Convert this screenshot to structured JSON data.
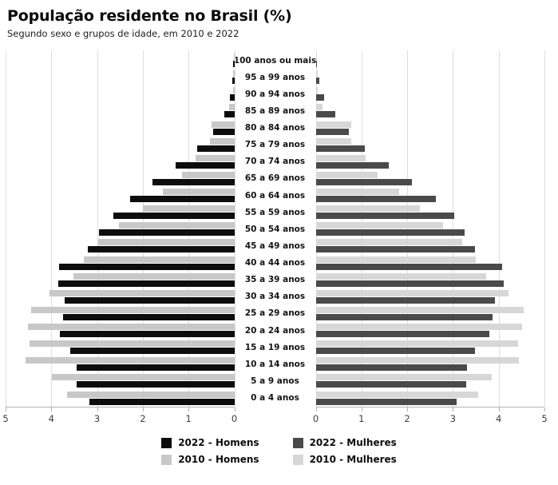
{
  "header": {
    "title": "População residente no Brasil (%)",
    "subtitle": "Segundo sexo e grupos de idade, em 2010 e 2022"
  },
  "colors": {
    "men_2022": "#0d0d0d",
    "men_2010": "#c8c8c8",
    "women_2022": "#4a4a4a",
    "women_2010": "#d7d7d7",
    "gridline": "#dedede",
    "axis": "#b3b3b3"
  },
  "chart_data": {
    "type": "bar",
    "variant": "population-pyramid",
    "title": "População residente no Brasil (%)",
    "subtitle": "Segundo sexo e grupos de idade, em 2010 e 2022",
    "xlim": [
      0,
      5
    ],
    "grid": true,
    "age_groups": [
      "100 anos ou mais",
      "95 a 99 anos",
      "90 a 94 anos",
      "85 a 89 anos",
      "80 a 84 anos",
      "75 a 79 anos",
      "70 a 74 anos",
      "65 a 69 anos",
      "60 a 64 anos",
      "55 a 59 anos",
      "50 a 54 anos",
      "45 a 49 anos",
      "40 a 44 anos",
      "35 a 39 anos",
      "30 a 34 anos",
      "25 a 29 anos",
      "20 a 24 anos",
      "15 a 19 anos",
      "10 a 14 anos",
      "5 a 9 anos",
      "0 a 4 anos"
    ],
    "series": [
      {
        "name": "2022 - Homens",
        "side": "left",
        "color_key": "men_2022",
        "values": [
          0.02,
          0.05,
          0.1,
          0.21,
          0.47,
          0.81,
          1.29,
          1.79,
          2.27,
          2.65,
          2.95,
          3.2,
          3.83,
          3.85,
          3.71,
          3.75,
          3.81,
          3.58,
          3.44,
          3.44,
          3.17
        ]
      },
      {
        "name": "2010 - Homens",
        "side": "left",
        "color_key": "men_2010",
        "values": [
          0.01,
          0.02,
          0.03,
          0.11,
          0.49,
          0.53,
          0.85,
          1.15,
          1.57,
          1.99,
          2.52,
          2.97,
          3.29,
          3.52,
          4.04,
          4.44,
          4.52,
          4.48,
          4.56,
          3.99,
          3.65
        ]
      },
      {
        "name": "2022 - Mulheres",
        "side": "right",
        "color_key": "women_2022",
        "values": [
          0.02,
          0.07,
          0.19,
          0.42,
          0.73,
          1.07,
          1.6,
          2.11,
          2.63,
          3.03,
          3.25,
          3.49,
          4.08,
          4.11,
          3.91,
          3.87,
          3.79,
          3.48,
          3.31,
          3.29,
          3.08
        ]
      },
      {
        "name": "2010 - Mulheres",
        "side": "right",
        "color_key": "women_2010",
        "values": [
          0.01,
          0.04,
          0.05,
          0.14,
          0.78,
          0.77,
          1.09,
          1.36,
          1.83,
          2.28,
          2.78,
          3.21,
          3.5,
          3.73,
          4.21,
          4.54,
          4.52,
          4.43,
          4.44,
          3.84,
          3.56
        ]
      }
    ],
    "x_ticks_left": [
      "5",
      "4",
      "3",
      "2",
      "1",
      "0"
    ],
    "x_ticks_right": [
      "0",
      "1",
      "2",
      "3",
      "4",
      "5"
    ],
    "legend": [
      {
        "label": "2022 - Homens",
        "color_key": "men_2022"
      },
      {
        "label": "2010 - Homens",
        "color_key": "men_2010"
      },
      {
        "label": "2022 - Mulheres",
        "color_key": "women_2022"
      },
      {
        "label": "2010 - Mulheres",
        "color_key": "women_2010"
      }
    ],
    "legend_position": "bottom"
  }
}
